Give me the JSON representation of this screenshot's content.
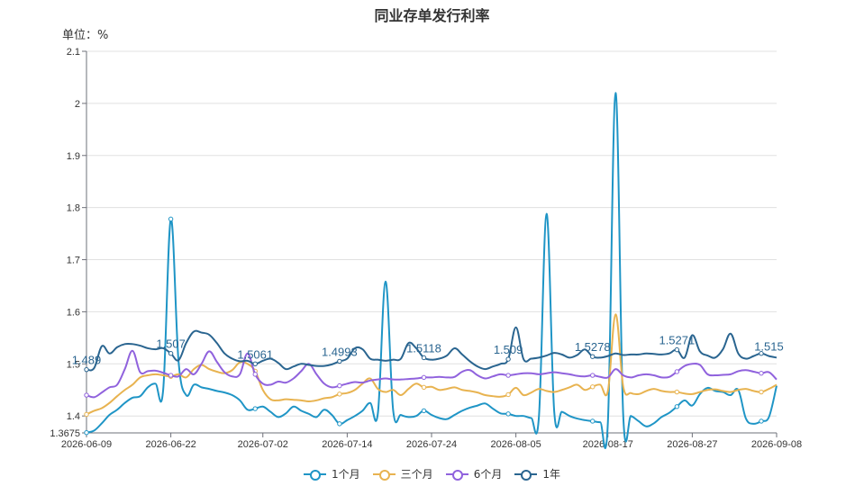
{
  "chart_data": {
    "type": "line",
    "title": "同业存单发行利率",
    "unit_label": "单位：%",
    "ylim": [
      1.3675,
      2.1
    ],
    "y_ticks": [
      "1.3675",
      "1.4",
      "1.5",
      "1.6",
      "1.7",
      "1.8",
      "1.9",
      "2",
      "2.1"
    ],
    "x_tick_labels": [
      "2026-06-09",
      "2026-06-22",
      "2026-07-02",
      "2026-07-14",
      "2026-07-24",
      "2026-08-05",
      "2026-08-17",
      "2026-08-27",
      "2026-09-08"
    ],
    "grid": true,
    "legend_position": "bottom",
    "series": [
      {
        "name": "1个月",
        "color": "#1f95c6",
        "values": [
          1.368,
          1.372,
          1.386,
          1.402,
          1.412,
          1.425,
          1.435,
          1.438,
          1.455,
          1.462,
          1.45,
          1.778,
          1.506,
          1.44,
          1.46,
          1.455,
          1.452,
          1.448,
          1.445,
          1.44,
          1.43,
          1.412,
          1.414,
          1.418,
          1.408,
          1.398,
          1.405,
          1.418,
          1.41,
          1.404,
          1.398,
          1.412,
          1.402,
          1.385,
          1.392,
          1.4,
          1.41,
          1.425,
          1.405,
          1.658,
          1.41,
          1.402,
          1.398,
          1.4,
          1.41,
          1.402,
          1.396,
          1.394,
          1.402,
          1.41,
          1.416,
          1.42,
          1.424,
          1.414,
          1.405,
          1.404,
          1.4,
          1.4,
          1.396,
          1.398,
          1.788,
          1.408,
          1.408,
          1.4,
          1.395,
          1.392,
          1.39,
          1.388,
          1.389,
          2.02,
          1.4,
          1.4,
          1.39,
          1.38,
          1.386,
          1.398,
          1.406,
          1.418,
          1.43,
          1.42,
          1.442,
          1.454,
          1.448,
          1.446,
          1.44,
          1.45,
          1.395,
          1.385,
          1.39,
          1.398,
          1.458
        ]
      },
      {
        "name": "三个月",
        "color": "#e8b350",
        "values": [
          1.403,
          1.41,
          1.415,
          1.425,
          1.438,
          1.45,
          1.46,
          1.474,
          1.478,
          1.48,
          1.478,
          1.476,
          1.48,
          1.474,
          1.49,
          1.498,
          1.49,
          1.485,
          1.482,
          1.488,
          1.503,
          1.5,
          1.486,
          1.45,
          1.432,
          1.43,
          1.432,
          1.431,
          1.43,
          1.428,
          1.43,
          1.434,
          1.436,
          1.442,
          1.444,
          1.45,
          1.462,
          1.472,
          1.452,
          1.446,
          1.45,
          1.44,
          1.452,
          1.462,
          1.455,
          1.456,
          1.45,
          1.452,
          1.455,
          1.45,
          1.448,
          1.445,
          1.44,
          1.438,
          1.437,
          1.441,
          1.454,
          1.44,
          1.445,
          1.452,
          1.448,
          1.446,
          1.45,
          1.455,
          1.46,
          1.45,
          1.456,
          1.46,
          1.448,
          1.595,
          1.456,
          1.444,
          1.442,
          1.448,
          1.452,
          1.448,
          1.446,
          1.446,
          1.443,
          1.442,
          1.446,
          1.45,
          1.451,
          1.448,
          1.446,
          1.45,
          1.452,
          1.448,
          1.446,
          1.452,
          1.46
        ]
      },
      {
        "name": "6个月",
        "color": "#9062dd",
        "values": [
          1.44,
          1.436,
          1.445,
          1.455,
          1.46,
          1.49,
          1.525,
          1.484,
          1.486,
          1.487,
          1.483,
          1.478,
          1.476,
          1.49,
          1.48,
          1.5,
          1.524,
          1.504,
          1.484,
          1.476,
          1.48,
          1.52,
          1.48,
          1.462,
          1.46,
          1.466,
          1.464,
          1.472,
          1.486,
          1.5,
          1.48,
          1.462,
          1.455,
          1.458,
          1.462,
          1.465,
          1.464,
          1.468,
          1.47,
          1.472,
          1.47,
          1.47,
          1.471,
          1.472,
          1.474,
          1.474,
          1.475,
          1.474,
          1.475,
          1.485,
          1.488,
          1.478,
          1.472,
          1.476,
          1.48,
          1.478,
          1.48,
          1.482,
          1.482,
          1.48,
          1.482,
          1.484,
          1.482,
          1.48,
          1.477,
          1.476,
          1.478,
          1.475,
          1.474,
          1.49,
          1.478,
          1.474,
          1.478,
          1.48,
          1.478,
          1.474,
          1.475,
          1.485,
          1.496,
          1.5,
          1.498,
          1.48,
          1.478,
          1.479,
          1.48,
          1.486,
          1.488,
          1.485,
          1.482,
          1.484,
          1.47
        ]
      },
      {
        "name": "1年",
        "color": "#2a6590",
        "values": [
          1.489,
          1.492,
          1.534,
          1.52,
          1.532,
          1.538,
          1.538,
          1.535,
          1.53,
          1.528,
          1.53,
          1.52,
          1.507,
          1.54,
          1.562,
          1.56,
          1.556,
          1.54,
          1.52,
          1.51,
          1.505,
          1.506,
          1.5,
          1.506,
          1.51,
          1.502,
          1.49,
          1.495,
          1.5,
          1.498,
          1.496,
          1.496,
          1.499,
          1.505,
          1.51,
          1.53,
          1.528,
          1.51,
          1.508,
          1.506,
          1.508,
          1.51,
          1.54,
          1.53,
          1.5118,
          1.508,
          1.51,
          1.516,
          1.53,
          1.518,
          1.505,
          1.495,
          1.49,
          1.495,
          1.5,
          1.509,
          1.57,
          1.509,
          1.51,
          1.512,
          1.516,
          1.521,
          1.518,
          1.512,
          1.517,
          1.5278,
          1.514,
          1.512,
          1.515,
          1.52,
          1.517,
          1.518,
          1.518,
          1.52,
          1.519,
          1.518,
          1.52,
          1.5271,
          1.512,
          1.555,
          1.524,
          1.516,
          1.512,
          1.528,
          1.558,
          1.52,
          1.51,
          1.515,
          1.52,
          1.515,
          1.512
        ]
      }
    ],
    "point_labels": [
      "1.489",
      "1.507",
      "1.5061",
      "1.4993",
      "1.5118",
      "1.509",
      "1.5278",
      "1.5271",
      "1.515"
    ]
  },
  "legend_items": [
    "1个月",
    "三个月",
    "6个月",
    "1年"
  ]
}
